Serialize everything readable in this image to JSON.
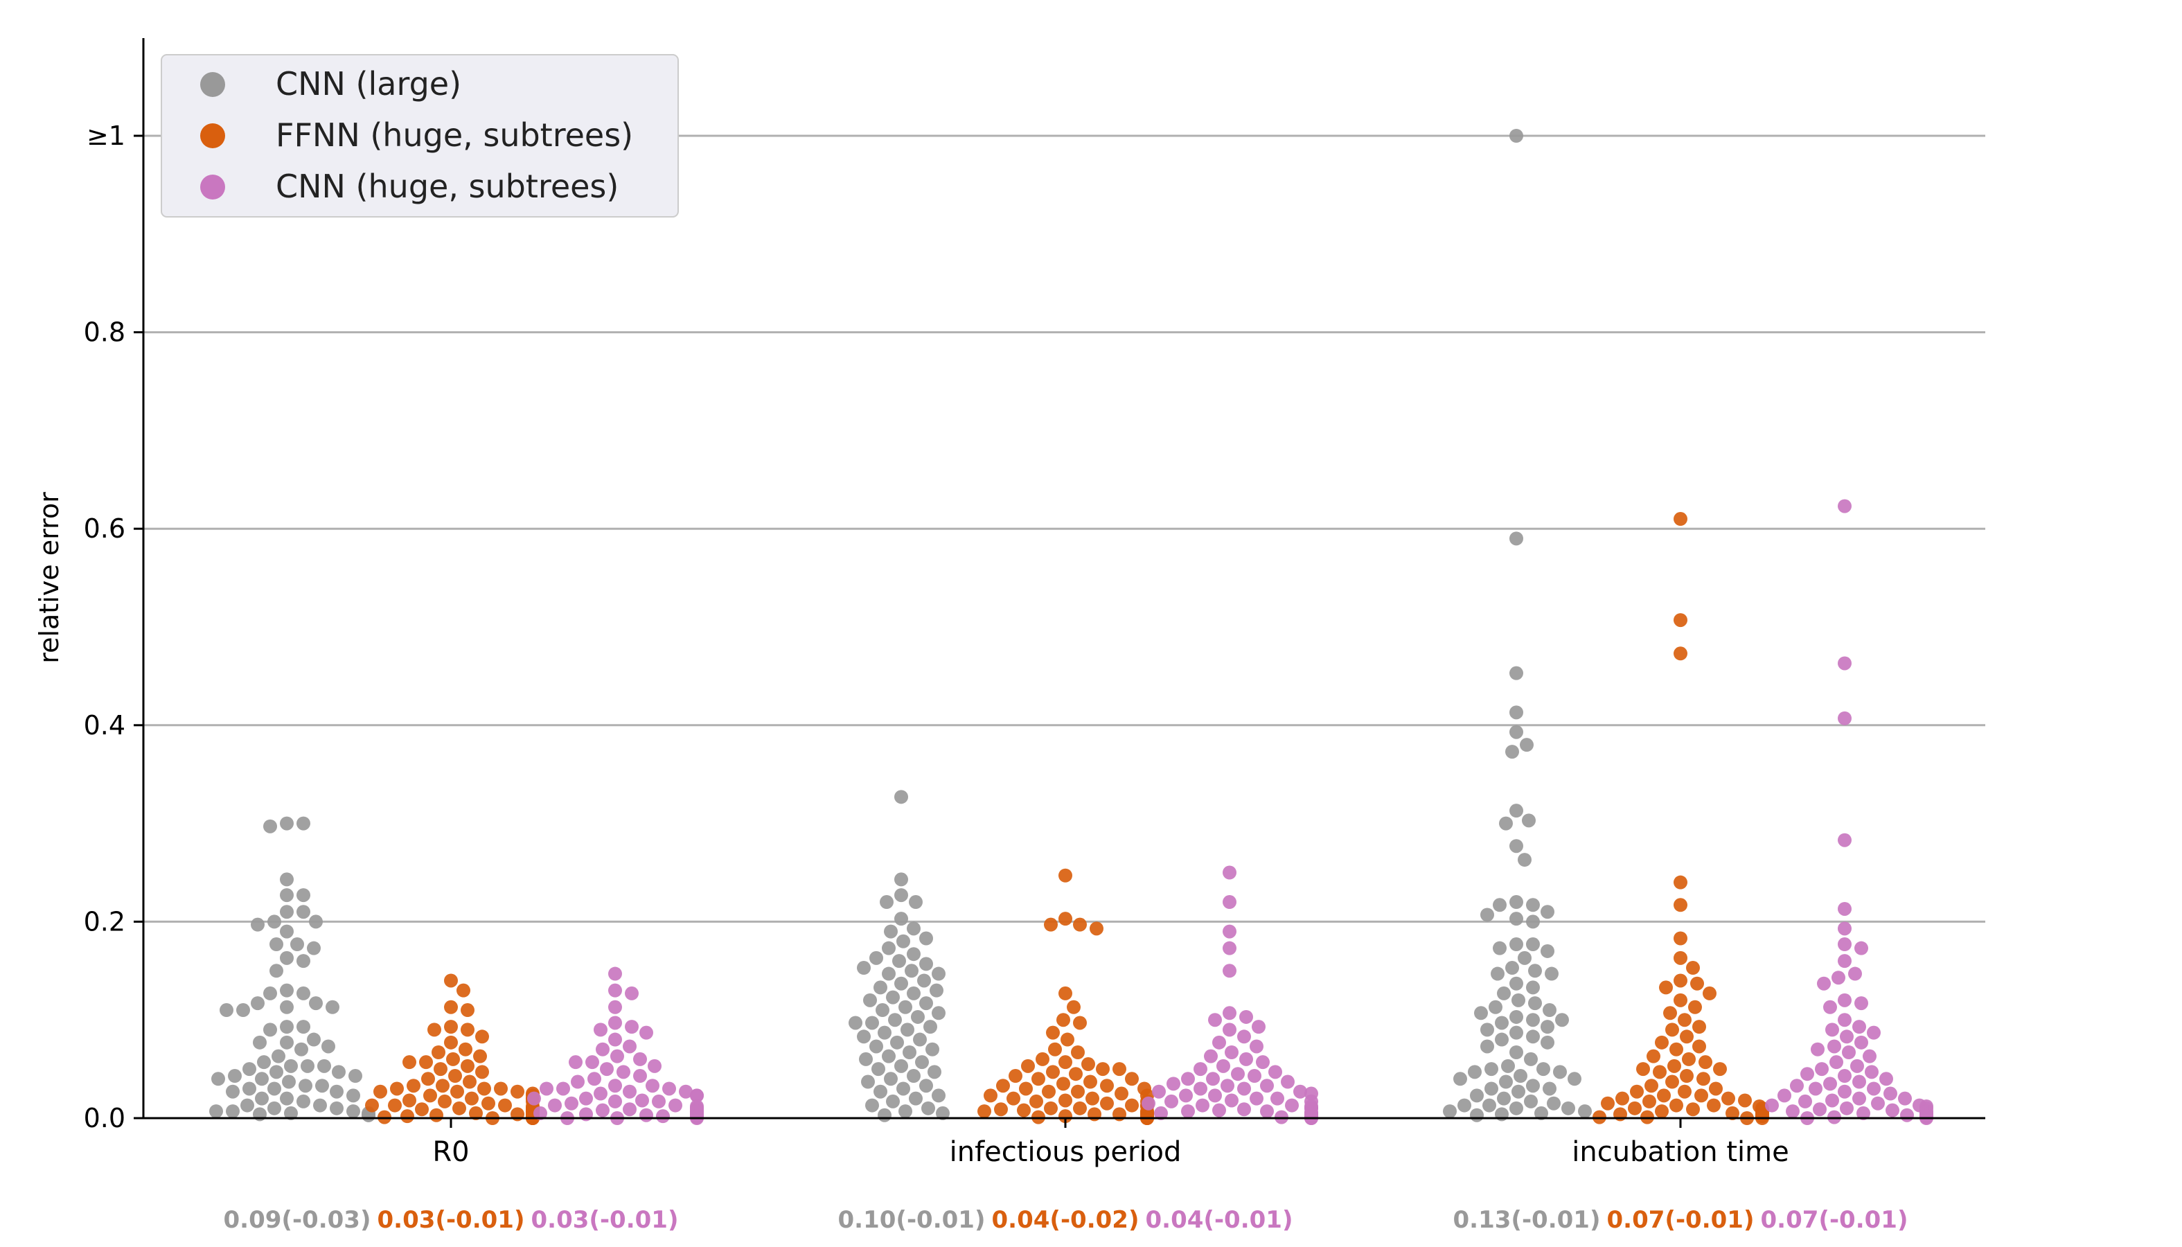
{
  "chart_data": {
    "type": "scatter",
    "subtype": "swarm",
    "title": "",
    "xlabel": "",
    "ylabel": "relative error",
    "ylim": [
      0,
      1.1
    ],
    "yticks": [
      {
        "value": 0.0,
        "label": "0.0"
      },
      {
        "value": 0.2,
        "label": "0.2"
      },
      {
        "value": 0.4,
        "label": "0.4"
      },
      {
        "value": 0.6,
        "label": "0.6"
      },
      {
        "value": 0.8,
        "label": "0.8"
      },
      {
        "value": 1.0,
        "label": "≥1"
      }
    ],
    "grid": "horizontal",
    "legend_position": "top-left",
    "categories": [
      "R0",
      "infectious period",
      "incubation time"
    ],
    "series": [
      {
        "name": "CNN (large)",
        "color": "#999999",
        "summary": [
          "0.09(-0.03)",
          "0.10(-0.01)",
          "0.13(-0.01)"
        ],
        "points": [
          [
            0.3,
            0.297,
            0.3,
            0.243,
            0.227,
            0.227,
            0.21,
            0.21,
            0.2,
            0.2,
            0.197,
            0.19,
            0.177,
            0.177,
            0.173,
            0.163,
            0.16,
            0.15,
            0.13,
            0.127,
            0.127,
            0.117,
            0.117,
            0.113,
            0.113,
            0.11,
            0.11,
            0.093,
            0.093,
            0.09,
            0.08,
            0.077,
            0.077,
            0.073,
            0.07,
            0.063,
            0.057,
            0.053,
            0.053,
            0.053,
            0.05,
            0.047,
            0.047,
            0.043,
            0.043,
            0.04,
            0.04,
            0.037,
            0.033,
            0.033,
            0.03,
            0.03,
            0.027,
            0.027,
            0.023,
            0.02,
            0.02,
            0.017,
            0.013,
            0.013,
            0.01,
            0.01,
            0.007,
            0.007,
            0.007,
            0.005,
            0.005,
            0.004,
            0.003,
            0.003
          ],
          [
            0.327,
            0.243,
            0.227,
            0.22,
            0.22,
            0.203,
            0.193,
            0.19,
            0.183,
            0.18,
            0.173,
            0.167,
            0.163,
            0.16,
            0.157,
            0.153,
            0.15,
            0.147,
            0.147,
            0.14,
            0.137,
            0.133,
            0.13,
            0.127,
            0.123,
            0.12,
            0.117,
            0.113,
            0.11,
            0.107,
            0.103,
            0.1,
            0.097,
            0.097,
            0.093,
            0.09,
            0.087,
            0.083,
            0.08,
            0.077,
            0.073,
            0.07,
            0.067,
            0.063,
            0.06,
            0.057,
            0.053,
            0.05,
            0.047,
            0.043,
            0.04,
            0.037,
            0.033,
            0.03,
            0.027,
            0.023,
            0.02,
            0.017,
            0.013,
            0.01,
            0.007,
            0.005,
            0.003
          ],
          [
            1.0,
            0.59,
            0.453,
            0.413,
            0.393,
            0.38,
            0.373,
            0.313,
            0.303,
            0.3,
            0.277,
            0.263,
            0.22,
            0.217,
            0.217,
            0.21,
            0.207,
            0.203,
            0.2,
            0.177,
            0.177,
            0.173,
            0.17,
            0.163,
            0.153,
            0.15,
            0.147,
            0.147,
            0.137,
            0.133,
            0.127,
            0.12,
            0.117,
            0.113,
            0.11,
            0.107,
            0.103,
            0.1,
            0.1,
            0.097,
            0.093,
            0.09,
            0.087,
            0.083,
            0.08,
            0.077,
            0.073,
            0.067,
            0.06,
            0.053,
            0.05,
            0.05,
            0.047,
            0.047,
            0.043,
            0.04,
            0.04,
            0.037,
            0.033,
            0.03,
            0.03,
            0.027,
            0.023,
            0.02,
            0.017,
            0.015,
            0.013,
            0.013,
            0.01,
            0.01,
            0.007,
            0.007,
            0.005,
            0.004,
            0.003
          ]
        ]
      },
      {
        "name": "FFNN (huge, subtrees)",
        "color": "#d95f0e",
        "summary": [
          "0.03(-0.01)",
          "0.04(-0.02)",
          "0.07(-0.01)"
        ],
        "points": [
          [
            0.14,
            0.13,
            0.113,
            0.11,
            0.093,
            0.09,
            0.09,
            0.083,
            0.077,
            0.07,
            0.067,
            0.063,
            0.06,
            0.057,
            0.057,
            0.053,
            0.05,
            0.047,
            0.043,
            0.04,
            0.037,
            0.033,
            0.033,
            0.03,
            0.03,
            0.03,
            0.027,
            0.027,
            0.027,
            0.025,
            0.023,
            0.023,
            0.02,
            0.02,
            0.02,
            0.018,
            0.017,
            0.017,
            0.015,
            0.013,
            0.013,
            0.013,
            0.012,
            0.01,
            0.01,
            0.01,
            0.009,
            0.008,
            0.007,
            0.007,
            0.006,
            0.005,
            0.005,
            0.004,
            0.004,
            0.003,
            0.003,
            0.002,
            0.002,
            0.001,
            0.001,
            0.001,
            0.0,
            0.0,
            0.0,
            0.0
          ],
          [
            0.247,
            0.203,
            0.197,
            0.197,
            0.193,
            0.127,
            0.113,
            0.1,
            0.097,
            0.087,
            0.08,
            0.07,
            0.067,
            0.06,
            0.057,
            0.055,
            0.053,
            0.05,
            0.05,
            0.047,
            0.045,
            0.043,
            0.04,
            0.04,
            0.037,
            0.035,
            0.033,
            0.033,
            0.03,
            0.03,
            0.027,
            0.027,
            0.025,
            0.023,
            0.023,
            0.02,
            0.02,
            0.018,
            0.017,
            0.017,
            0.015,
            0.013,
            0.013,
            0.012,
            0.01,
            0.01,
            0.009,
            0.008,
            0.007,
            0.007,
            0.006,
            0.005,
            0.005,
            0.004,
            0.004,
            0.003,
            0.003,
            0.002,
            0.002,
            0.001,
            0.001,
            0.001,
            0.0,
            0.0,
            0.0
          ],
          [
            0.61,
            0.507,
            0.473,
            0.24,
            0.217,
            0.183,
            0.163,
            0.153,
            0.14,
            0.137,
            0.133,
            0.127,
            0.12,
            0.113,
            0.107,
            0.1,
            0.093,
            0.09,
            0.083,
            0.077,
            0.073,
            0.07,
            0.063,
            0.06,
            0.057,
            0.053,
            0.05,
            0.05,
            0.047,
            0.043,
            0.04,
            0.037,
            0.033,
            0.03,
            0.027,
            0.027,
            0.023,
            0.023,
            0.02,
            0.02,
            0.018,
            0.017,
            0.015,
            0.013,
            0.013,
            0.012,
            0.01,
            0.01,
            0.009,
            0.008,
            0.007,
            0.007,
            0.006,
            0.005,
            0.005,
            0.004,
            0.004,
            0.003,
            0.003,
            0.002,
            0.002,
            0.001,
            0.001,
            0.0,
            0.0
          ]
        ]
      },
      {
        "name": "CNN (huge, subtrees)",
        "color": "#c977c0",
        "summary": [
          "0.03(-0.01)",
          "0.04(-0.01)",
          "0.07(-0.01)"
        ],
        "points": [
          [
            0.147,
            0.13,
            0.127,
            0.113,
            0.097,
            0.093,
            0.09,
            0.087,
            0.08,
            0.073,
            0.07,
            0.063,
            0.06,
            0.057,
            0.057,
            0.053,
            0.05,
            0.047,
            0.043,
            0.04,
            0.037,
            0.033,
            0.033,
            0.03,
            0.03,
            0.03,
            0.027,
            0.027,
            0.025,
            0.023,
            0.023,
            0.02,
            0.02,
            0.018,
            0.017,
            0.017,
            0.015,
            0.013,
            0.013,
            0.012,
            0.01,
            0.01,
            0.01,
            0.009,
            0.008,
            0.007,
            0.007,
            0.006,
            0.005,
            0.005,
            0.004,
            0.004,
            0.003,
            0.003,
            0.002,
            0.002,
            0.001,
            0.001,
            0.001,
            0.0,
            0.0,
            0.0
          ],
          [
            0.25,
            0.22,
            0.19,
            0.173,
            0.15,
            0.107,
            0.103,
            0.1,
            0.093,
            0.09,
            0.083,
            0.077,
            0.073,
            0.067,
            0.063,
            0.06,
            0.057,
            0.053,
            0.05,
            0.047,
            0.045,
            0.043,
            0.04,
            0.04,
            0.037,
            0.035,
            0.033,
            0.033,
            0.03,
            0.03,
            0.027,
            0.027,
            0.025,
            0.023,
            0.023,
            0.02,
            0.02,
            0.018,
            0.017,
            0.017,
            0.015,
            0.013,
            0.013,
            0.012,
            0.01,
            0.01,
            0.009,
            0.008,
            0.007,
            0.007,
            0.006,
            0.005,
            0.005,
            0.004,
            0.004,
            0.003,
            0.003,
            0.002,
            0.002,
            0.001,
            0.001,
            0.0,
            0.0
          ],
          [
            0.623,
            0.463,
            0.407,
            0.283,
            0.213,
            0.193,
            0.177,
            0.173,
            0.16,
            0.147,
            0.143,
            0.137,
            0.12,
            0.117,
            0.113,
            0.1,
            0.093,
            0.09,
            0.087,
            0.083,
            0.077,
            0.073,
            0.07,
            0.067,
            0.063,
            0.057,
            0.053,
            0.05,
            0.047,
            0.045,
            0.043,
            0.04,
            0.037,
            0.035,
            0.033,
            0.03,
            0.03,
            0.027,
            0.025,
            0.023,
            0.02,
            0.02,
            0.018,
            0.017,
            0.015,
            0.013,
            0.013,
            0.012,
            0.01,
            0.01,
            0.009,
            0.008,
            0.007,
            0.007,
            0.006,
            0.005,
            0.005,
            0.004,
            0.004,
            0.003,
            0.003,
            0.002,
            0.002,
            0.001,
            0.001,
            0.0,
            0.0
          ]
        ]
      }
    ]
  }
}
